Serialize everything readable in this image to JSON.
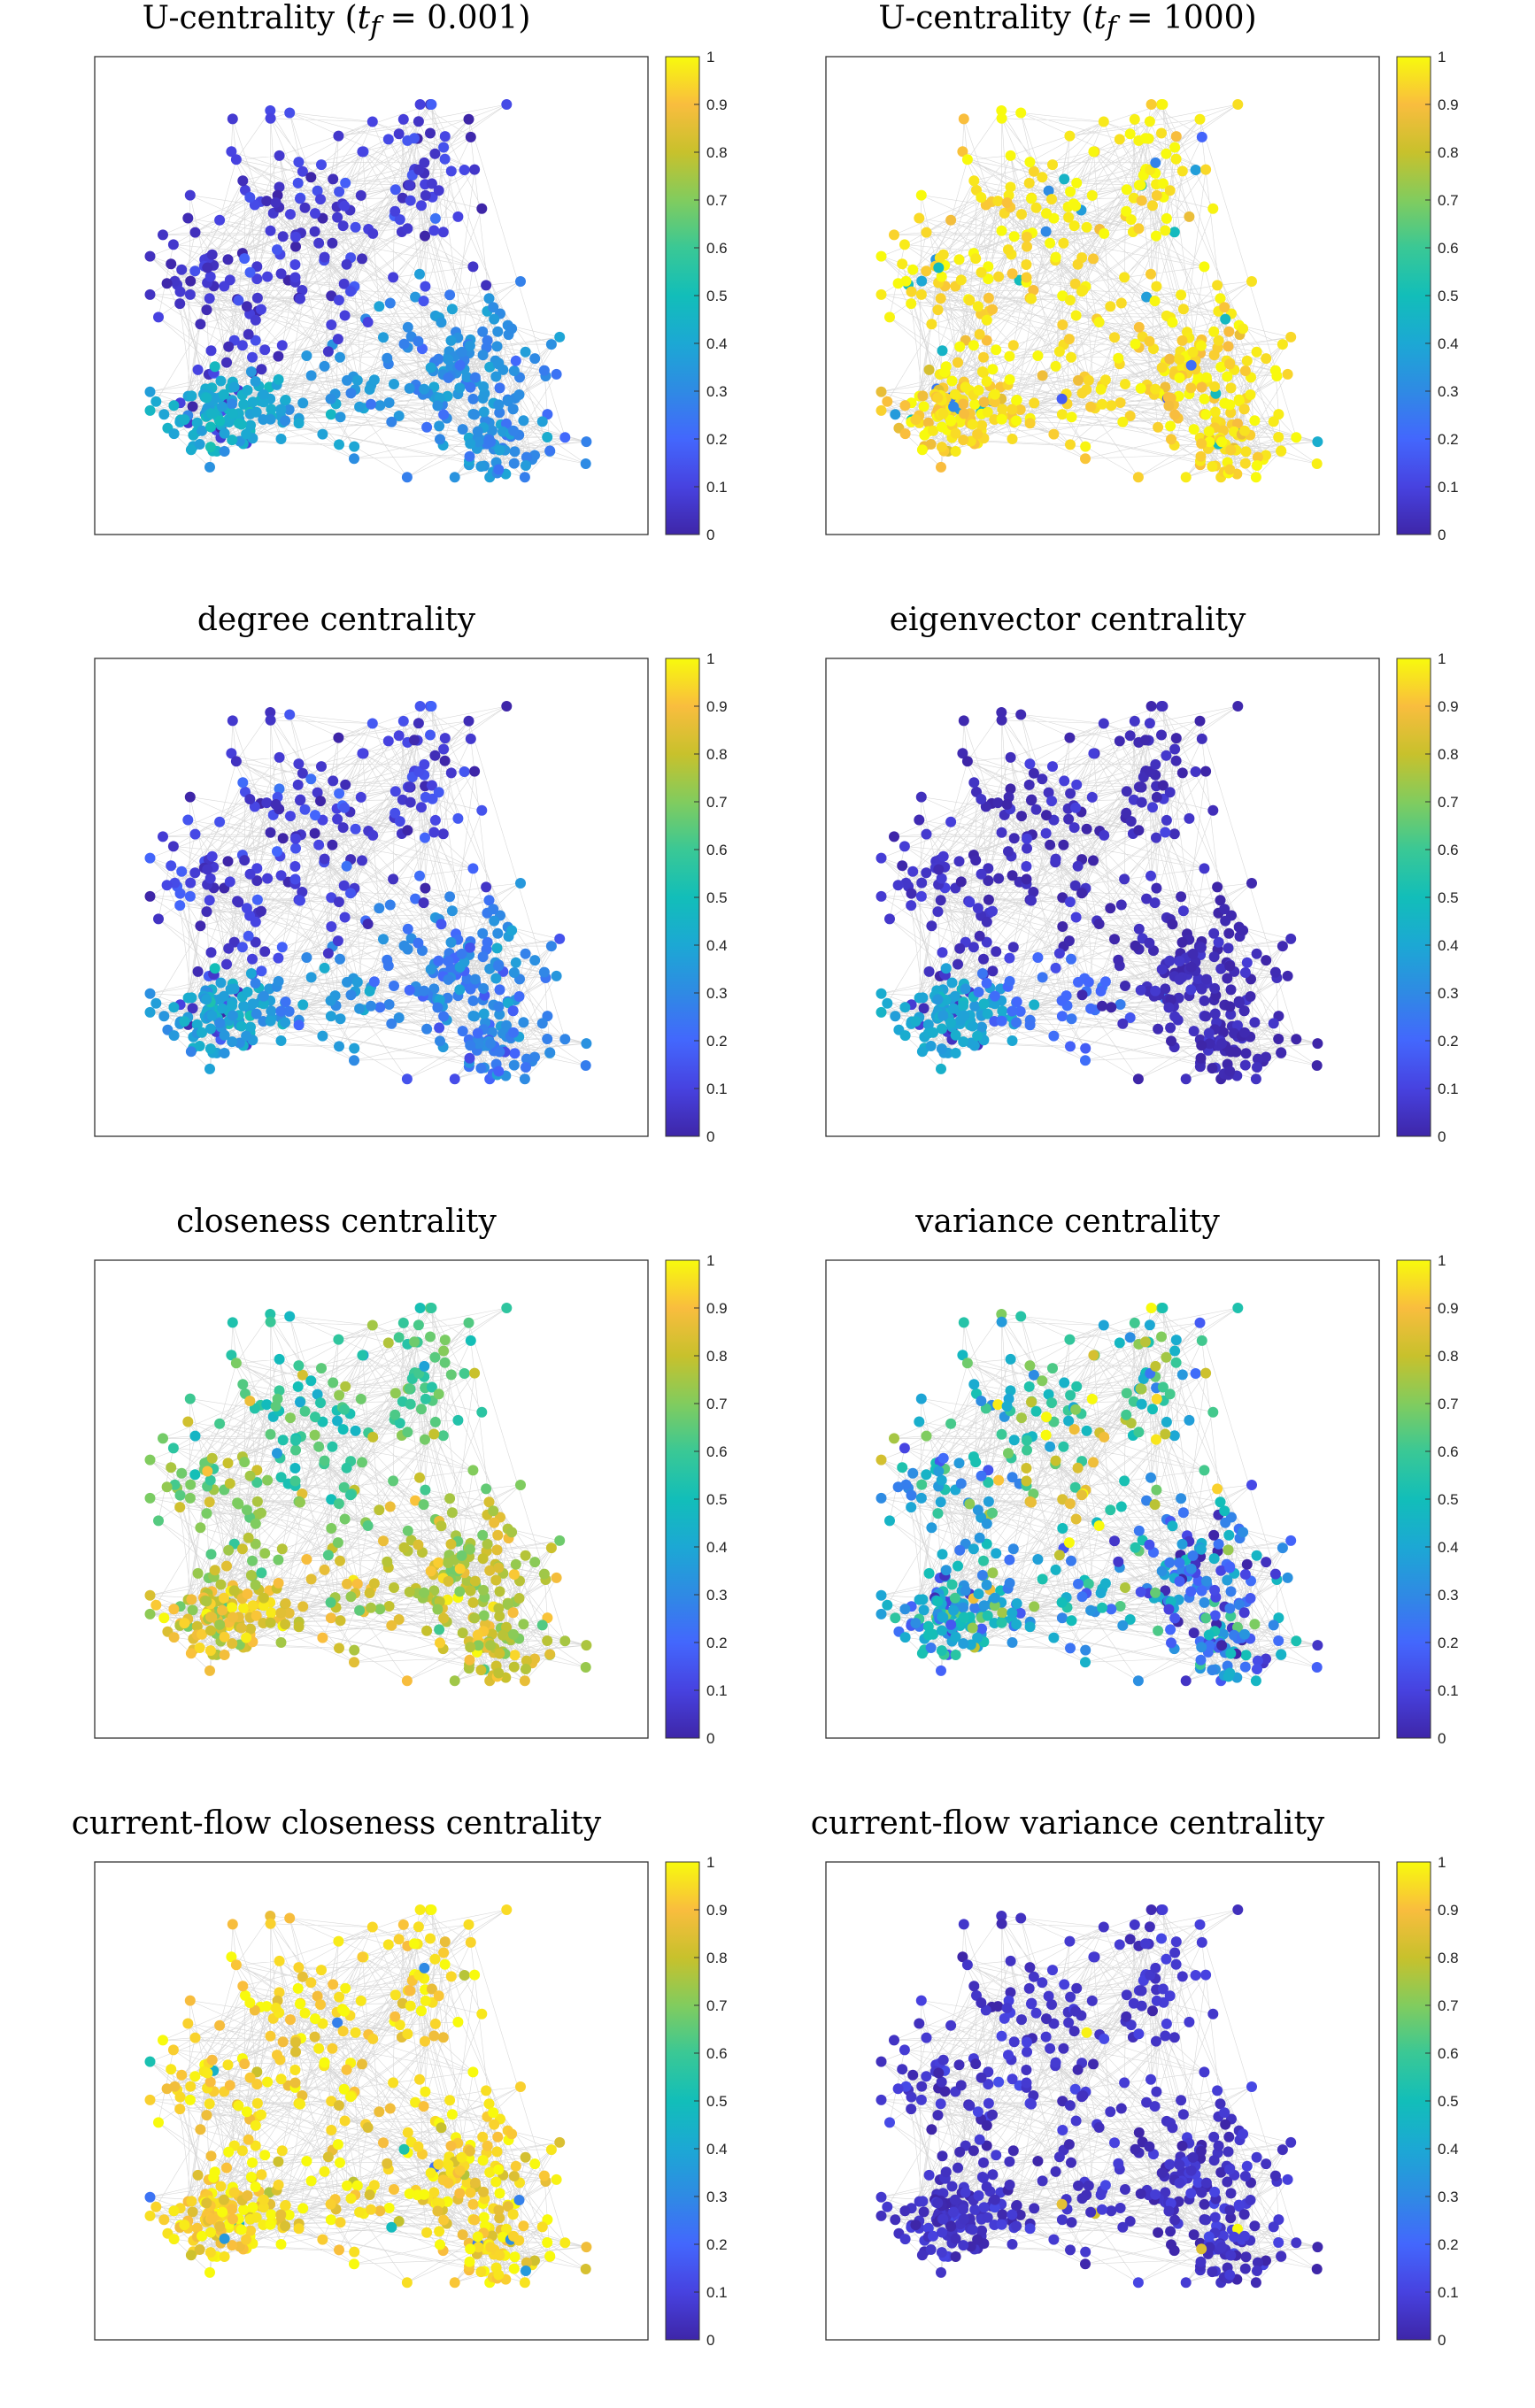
{
  "figure": {
    "edge_color": "#c8c8c8",
    "frame_color": "#333333",
    "colormap": [
      "#3e26a8",
      "#4742e0",
      "#4367fd",
      "#2f8ae4",
      "#1ca8d4",
      "#12beb9",
      "#3ac895",
      "#81cc5e",
      "#c8c12c",
      "#f9bd3e",
      "#f8fa0d"
    ]
  },
  "chart_data": [
    {
      "type": "scatter",
      "title": "U-centrality (t_f = 0.001)",
      "title_prefix": "U-centrality (",
      "title_math": "t",
      "title_sub": "f",
      "title_suffix": " = 0.001)",
      "colorbar": {
        "range": [
          0,
          1
        ],
        "ticks": [
          "0",
          "0.1",
          "0.2",
          "0.3",
          "0.4",
          "0.5",
          "0.6",
          "0.7",
          "0.8",
          "0.9",
          "1"
        ]
      },
      "profile": {
        "top": 0.08,
        "left": 0.07,
        "bottomLeft": 0.42,
        "bottomRight": 0.32,
        "noise": 0.05
      }
    },
    {
      "type": "scatter",
      "title": "U-centrality (t_f = 1000)",
      "title_prefix": "U-centrality (",
      "title_math": "t",
      "title_sub": "f",
      "title_suffix": " = 1000)",
      "colorbar": {
        "range": [
          0,
          1
        ],
        "ticks": [
          "0",
          "0.1",
          "0.2",
          "0.3",
          "0.4",
          "0.5",
          "0.6",
          "0.7",
          "0.8",
          "0.9",
          "1"
        ]
      },
      "profile": {
        "top": 0.97,
        "left": 0.97,
        "bottomLeft": 0.95,
        "bottomRight": 0.96,
        "noise": 0.04,
        "outlierRate": 0.06,
        "outlierLow": 0.15
      }
    },
    {
      "type": "scatter",
      "title": "degree centrality",
      "colorbar": {
        "range": [
          0,
          1
        ],
        "ticks": [
          "0",
          "0.1",
          "0.2",
          "0.3",
          "0.4",
          "0.5",
          "0.6",
          "0.7",
          "0.8",
          "0.9",
          "1"
        ]
      },
      "profile": {
        "top": 0.09,
        "left": 0.08,
        "bottomLeft": 0.38,
        "bottomRight": 0.28,
        "noise": 0.06
      }
    },
    {
      "type": "scatter",
      "title": "eigenvector centrality",
      "colorbar": {
        "range": [
          0,
          1
        ],
        "ticks": [
          "0",
          "0.1",
          "0.2",
          "0.3",
          "0.4",
          "0.5",
          "0.6",
          "0.7",
          "0.8",
          "0.9",
          "1"
        ]
      },
      "profile": {
        "top": 0.03,
        "left": 0.05,
        "bottomLeft": 0.4,
        "bottomRight": 0.03,
        "noise": 0.03
      }
    },
    {
      "type": "scatter",
      "title": "closeness centrality",
      "colorbar": {
        "range": [
          0,
          1
        ],
        "ticks": [
          "0",
          "0.1",
          "0.2",
          "0.3",
          "0.4",
          "0.5",
          "0.6",
          "0.7",
          "0.8",
          "0.9",
          "1"
        ]
      },
      "profile": {
        "top": 0.58,
        "left": 0.72,
        "bottomLeft": 0.86,
        "bottomRight": 0.8,
        "noise": 0.08
      }
    },
    {
      "type": "scatter",
      "title": "variance centrality",
      "colorbar": {
        "range": [
          0,
          1
        ],
        "ticks": [
          "0",
          "0.1",
          "0.2",
          "0.3",
          "0.4",
          "0.5",
          "0.6",
          "0.7",
          "0.8",
          "0.9",
          "1"
        ]
      },
      "profile": {
        "top": 0.55,
        "left": 0.35,
        "bottomLeft": 0.42,
        "bottomRight": 0.3,
        "noise": 0.16,
        "centerBoost": 0.35
      }
    },
    {
      "type": "scatter",
      "title": "current-flow closeness centrality",
      "colorbar": {
        "range": [
          0,
          1
        ],
        "ticks": [
          "0",
          "0.1",
          "0.2",
          "0.3",
          "0.4",
          "0.5",
          "0.6",
          "0.7",
          "0.8",
          "0.9",
          "1"
        ]
      },
      "profile": {
        "top": 0.95,
        "left": 0.94,
        "bottomLeft": 0.95,
        "bottomRight": 0.94,
        "noise": 0.06,
        "outlierRate": 0.04,
        "outlierLow": 0.2
      }
    },
    {
      "type": "scatter",
      "title": "current-flow variance centrality",
      "colorbar": {
        "range": [
          0,
          1
        ],
        "ticks": [
          "0",
          "0.1",
          "0.2",
          "0.3",
          "0.4",
          "0.5",
          "0.6",
          "0.7",
          "0.8",
          "0.9",
          "1"
        ]
      },
      "profile": {
        "top": 0.06,
        "left": 0.05,
        "bottomLeft": 0.05,
        "bottomRight": 0.05,
        "noise": 0.03,
        "outlierRate": 0.01,
        "outlierLow": 0.75
      }
    }
  ]
}
